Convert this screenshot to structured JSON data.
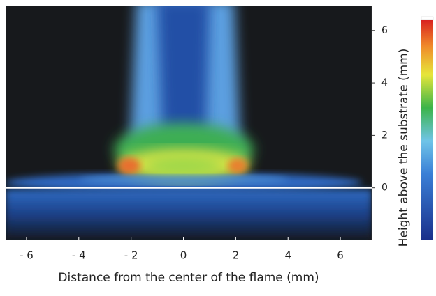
{
  "chart_data": {
    "type": "heatmap",
    "xlabel": "Distance from the center of the flame (mm)",
    "ylabel": "Height above the substrate (mm)",
    "xlim": [
      -6.8,
      7.2
    ],
    "xticks": [
      {
        "value": -6,
        "label": "- 6"
      },
      {
        "value": -4,
        "label": "- 4"
      },
      {
        "value": -2,
        "label": "- 2"
      },
      0,
      2,
      4,
      6
    ],
    "ylim": [
      -2,
      6.95
    ],
    "yticks": [
      0,
      2,
      4,
      6
    ]
  }
}
